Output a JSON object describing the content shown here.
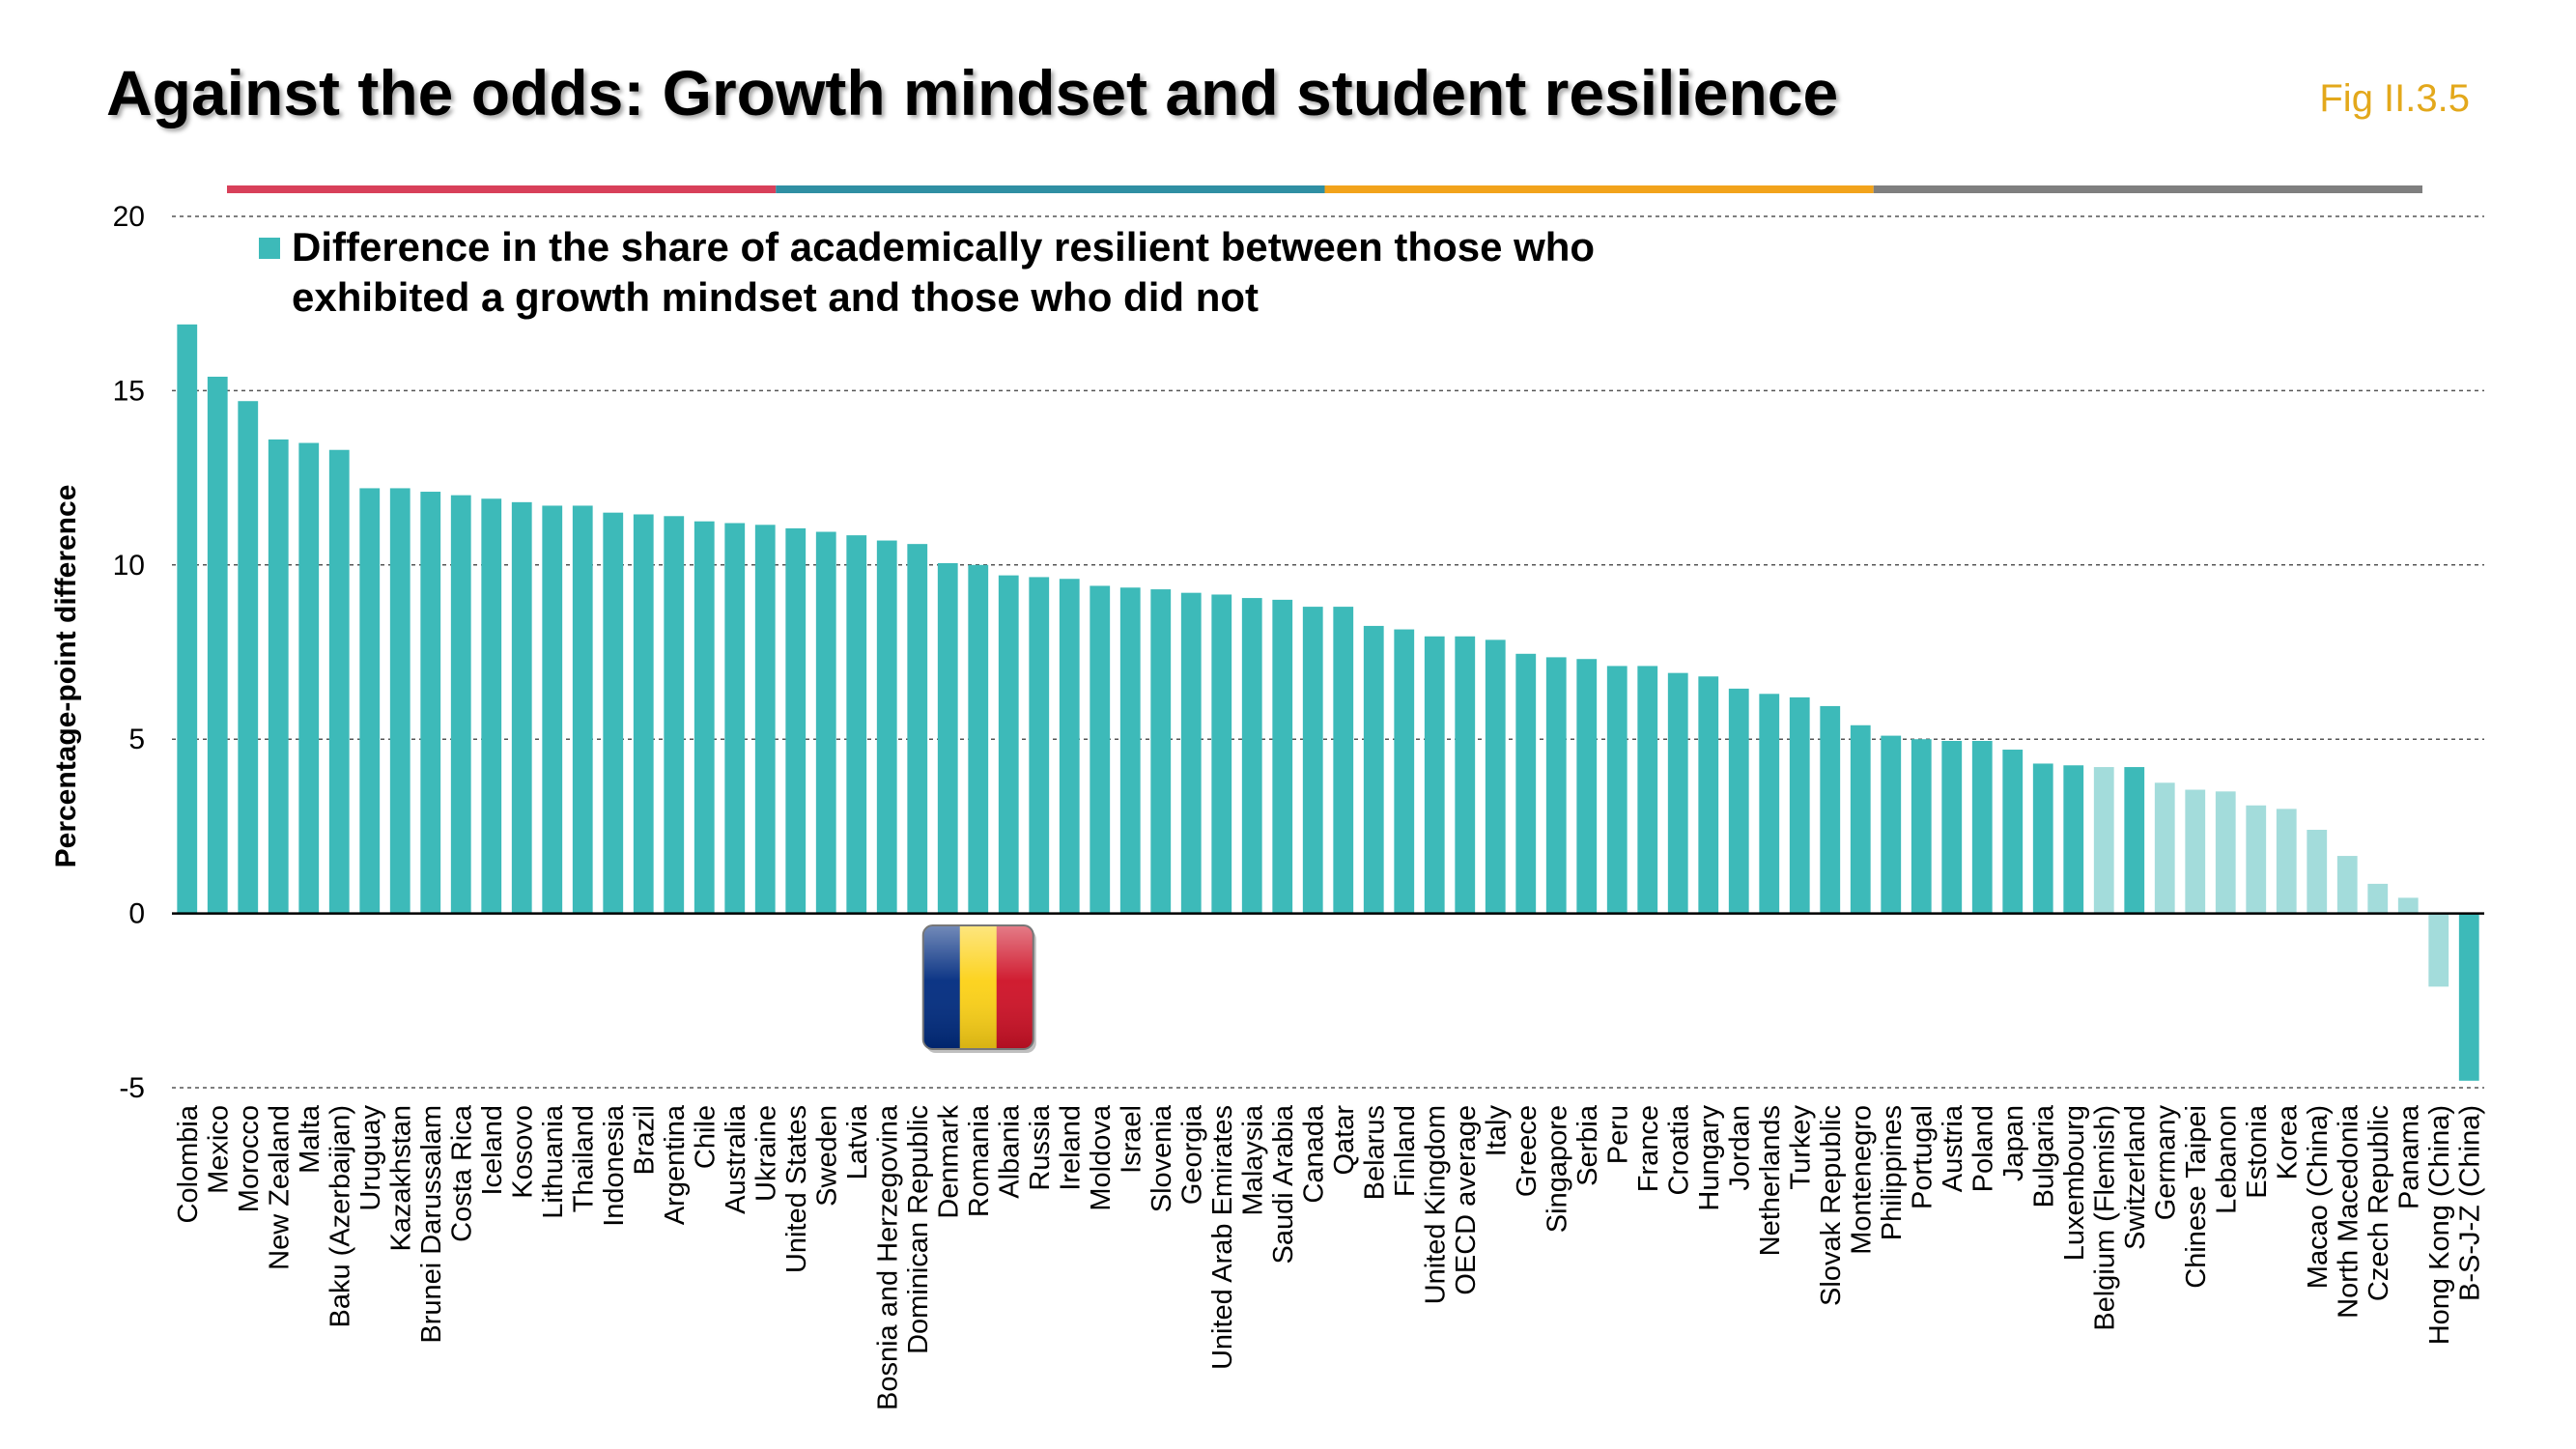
{
  "header": {
    "title": "Against the odds: Growth mindset and student resilience",
    "fig_label": "Fig II.3.5",
    "stripe_colors": [
      "#d8405a",
      "#2f8fa3",
      "#f2a31b",
      "#7f7f7f"
    ]
  },
  "colors": {
    "bar": "#3dbab9",
    "bar_light": "#a3dcdb",
    "flag": [
      "#002b7f",
      "#fcd116",
      "#ce1126"
    ]
  },
  "chart_data": {
    "type": "bar",
    "title": "",
    "xlabel": "",
    "ylabel": "Percentage-point difference",
    "ylim": [
      -5,
      20
    ],
    "yticks": [
      -5,
      0,
      5,
      10,
      15,
      20
    ],
    "grid": true,
    "legend": {
      "position": "top-left",
      "lines": [
        "Difference in the share of academically resilient between those who",
        "exhibited a growth mindset and those who did not"
      ]
    },
    "highlight": "Romania",
    "series": [
      {
        "name": "Difference in the share of academically resilient between those who exhibited a growth mindset and those who did not",
        "categories": [
          "Colombia",
          "Mexico",
          "Morocco",
          "New Zealand",
          "Malta",
          "Baku (Azerbaijan)",
          "Uruguay",
          "Kazakhstan",
          "Brunei Darussalam",
          "Costa Rica",
          "Iceland",
          "Kosovo",
          "Lithuania",
          "Thailand",
          "Indonesia",
          "Brazil",
          "Argentina",
          "Chile",
          "Australia",
          "Ukraine",
          "United States",
          "Sweden",
          "Latvia",
          "Bosnia and Herzegovina",
          "Dominican Republic",
          "Denmark",
          "Romania",
          "Albania",
          "Russia",
          "Ireland",
          "Moldova",
          "Israel",
          "Slovenia",
          "Georgia",
          "United Arab Emirates",
          "Malaysia",
          "Saudi Arabia",
          "Canada",
          "Qatar",
          "Belarus",
          "Finland",
          "United Kingdom",
          "OECD average",
          "Italy",
          "Greece",
          "Singapore",
          "Serbia",
          "Peru",
          "France",
          "Croatia",
          "Hungary",
          "Jordan",
          "Netherlands",
          "Turkey",
          "Slovak Republic",
          "Montenegro",
          "Philippines",
          "Portugal",
          "Austria",
          "Poland",
          "Japan",
          "Bulgaria",
          "Luxembourg",
          "Belgium (Flemish)",
          "Switzerland",
          "Germany",
          "Chinese Taipei",
          "Lebanon",
          "Estonia",
          "Korea",
          "Macao (China)",
          "North Macedonia",
          "Czech Republic",
          "Panama",
          "Hong Kong (China)",
          "B-S-J-Z (China)"
        ],
        "values": [
          16.9,
          15.4,
          14.7,
          13.6,
          13.5,
          13.3,
          12.2,
          12.2,
          12.1,
          12.0,
          11.9,
          11.8,
          11.7,
          11.7,
          11.5,
          11.45,
          11.4,
          11.25,
          11.2,
          11.15,
          11.05,
          10.95,
          10.85,
          10.7,
          10.6,
          10.05,
          10.0,
          9.7,
          9.65,
          9.6,
          9.4,
          9.35,
          9.3,
          9.2,
          9.15,
          9.05,
          9.0,
          8.8,
          8.8,
          8.25,
          8.15,
          7.95,
          7.95,
          7.85,
          7.45,
          7.35,
          7.3,
          7.1,
          7.1,
          6.9,
          6.8,
          6.45,
          6.3,
          6.2,
          5.95,
          5.4,
          5.1,
          5.0,
          4.95,
          4.95,
          4.7,
          4.3,
          4.25,
          4.2,
          4.2,
          3.75,
          3.55,
          3.5,
          3.1,
          3.0,
          2.4,
          1.65,
          0.85,
          0.45,
          -2.1,
          -4.8
        ],
        "significant": [
          true,
          true,
          true,
          true,
          true,
          true,
          true,
          true,
          true,
          true,
          true,
          true,
          true,
          true,
          true,
          true,
          true,
          true,
          true,
          true,
          true,
          true,
          true,
          true,
          true,
          true,
          true,
          true,
          true,
          true,
          true,
          true,
          true,
          true,
          true,
          true,
          true,
          true,
          true,
          true,
          true,
          true,
          true,
          true,
          true,
          true,
          true,
          true,
          true,
          true,
          true,
          true,
          true,
          true,
          true,
          true,
          true,
          true,
          true,
          true,
          true,
          true,
          true,
          false,
          true,
          false,
          false,
          false,
          false,
          false,
          false,
          false,
          false,
          false,
          false,
          true
        ]
      }
    ]
  }
}
